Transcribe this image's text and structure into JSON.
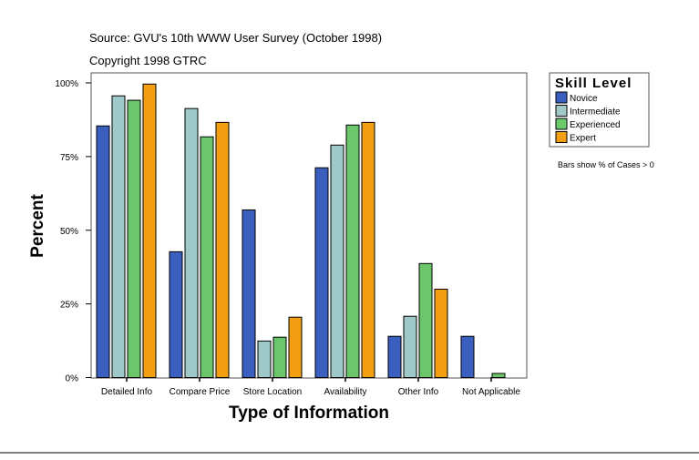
{
  "chart_data": {
    "type": "bar",
    "source": "Source: GVU's 10th WWW User Survey (October 1998)",
    "copyright": "Copyright 1998 GTRC",
    "xlabel": "Type of Information",
    "ylabel": "Percent",
    "ylim": [
      0,
      100
    ],
    "yticks": [
      "0%",
      "25%",
      "50%",
      "75%",
      "100%"
    ],
    "grid": false,
    "legend": {
      "title": "Skill Level",
      "placement": "right"
    },
    "note": "Bars show % of Cases > 0",
    "categories": [
      "Detailed Info",
      "Compare Price",
      "Store Location",
      "Availability",
      "Other Info",
      "Not Applicable"
    ],
    "series": [
      {
        "name": "Novice",
        "color": "#3a5fbe",
        "values": [
          85.4,
          42.7,
          56.9,
          71.2,
          14.0,
          14.0
        ]
      },
      {
        "name": "Intermediate",
        "color": "#9fc8c8",
        "values": [
          95.6,
          91.3,
          12.4,
          78.9,
          20.8,
          0
        ]
      },
      {
        "name": "Experienced",
        "color": "#6cc66c",
        "values": [
          94.1,
          81.7,
          13.7,
          85.7,
          38.7,
          1.4
        ]
      },
      {
        "name": "Expert",
        "color": "#f29f14",
        "values": [
          99.6,
          86.6,
          20.5,
          86.6,
          30.0,
          0
        ]
      }
    ]
  }
}
